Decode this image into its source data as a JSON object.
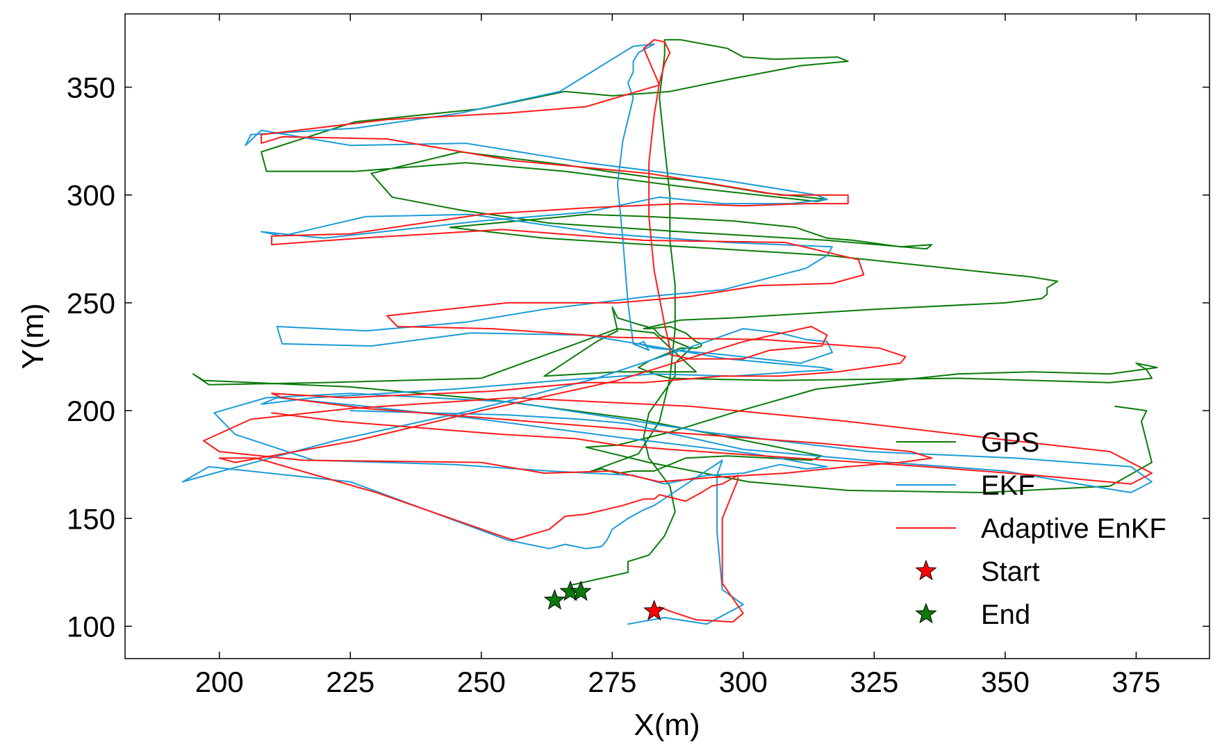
{
  "chart_data": {
    "type": "line",
    "title": "",
    "xlabel": "X(m)",
    "ylabel": "Y(m)",
    "xlim": [
      182,
      389
    ],
    "ylim": [
      85,
      384
    ],
    "xticks": [
      200,
      225,
      250,
      275,
      300,
      325,
      350,
      375
    ],
    "yticks": [
      100,
      150,
      200,
      250,
      300,
      350
    ],
    "grid": false,
    "legend_position": "lower-right",
    "legend": [
      "GPS",
      "EKF",
      "Adaptive EnKF",
      "Start",
      "End"
    ],
    "colors": {
      "GPS": "#0a7a0a",
      "EKF": "#1a9bd7",
      "Adaptive EnKF": "#ff1a1a",
      "Start": "#ff0000",
      "End": "#0a7a0a"
    },
    "series": [
      {
        "name": "GPS",
        "x": [
          267,
          278,
          278,
          282,
          285,
          287,
          286,
          282,
          281,
          282,
          287,
          287,
          290,
          284,
          283,
          280,
          276,
          275,
          276,
          272,
          262,
          276,
          291,
          283,
          276,
          250,
          220,
          198,
          195,
          197,
          225,
          252,
          280,
          315,
          313,
          297,
          289,
          283,
          279,
          276,
          273,
          271,
          270,
          280,
          284,
          286,
          287,
          287,
          286,
          286,
          285,
          284,
          285,
          285,
          288,
          297,
          300,
          306,
          318,
          320,
          311,
          298,
          286,
          275,
          266,
          250,
          226,
          208,
          209,
          226,
          247,
          266,
          288,
          314,
          316,
          304,
          289,
          283,
          274,
          266,
          246,
          229,
          233,
          246,
          263,
          288,
          316,
          335,
          336,
          330,
          321,
          316,
          310,
          298,
          282,
          270,
          266,
          244,
          262,
          282,
          316,
          347,
          355,
          360,
          358,
          358,
          357,
          350,
          325,
          298,
          288,
          281,
          282,
          286,
          289,
          291,
          292,
          292,
          291,
          288,
          282,
          280,
          283,
          286,
          306,
          341,
          370,
          378,
          377,
          375,
          379,
          370,
          355,
          341,
          314,
          298,
          286,
          276,
          270,
          282,
          301,
          320,
          346,
          370,
          378,
          376,
          377,
          371
        ],
        "y": [
          119,
          125,
          130,
          133,
          142,
          153,
          165,
          178,
          188,
          199,
          216,
          222,
          229,
          235,
          238,
          240,
          243,
          248,
          237,
          232,
          216,
          218,
          218,
          236,
          238,
          215,
          213,
          212,
          217,
          214,
          211,
          205,
          196,
          179,
          177,
          179,
          178,
          172,
          172,
          171,
          173,
          172,
          171,
          180,
          195,
          215,
          238,
          258,
          279,
          300,
          322,
          345,
          365,
          372,
          372,
          368,
          364,
          363,
          364,
          362,
          360,
          354,
          348,
          346,
          348,
          340,
          334,
          320,
          311,
          311,
          315,
          311,
          304,
          297,
          298,
          301,
          307,
          308,
          311,
          314,
          320,
          310,
          299,
          293,
          287,
          283,
          279,
          275,
          277,
          276,
          279,
          280,
          285,
          288,
          290,
          291,
          290,
          285,
          280,
          277,
          272,
          264,
          262,
          260,
          257,
          254,
          252,
          250,
          247,
          243,
          242,
          238,
          238,
          239,
          236,
          232,
          231,
          230,
          229,
          229,
          223,
          220,
          217,
          215,
          214,
          215,
          213,
          215,
          219,
          222,
          220,
          217,
          218,
          217,
          210,
          199,
          190,
          184,
          183,
          176,
          167,
          163,
          162,
          165,
          176,
          195,
          200,
          202
        ]
      },
      {
        "name": "EKF",
        "x": [
          278,
          285,
          293,
          300,
          296,
          295,
          295,
          296,
          283,
          281,
          278,
          275,
          274,
          273,
          270,
          266,
          263,
          255,
          225,
          198,
          193,
          199,
          222,
          248,
          272,
          293,
          300,
          307,
          312,
          316,
          317,
          311,
          296,
          283,
          280,
          281,
          282,
          279,
          278,
          277,
          276,
          277,
          279,
          278,
          279,
          279,
          280,
          283,
          279,
          265,
          246,
          226,
          206,
          205,
          208,
          225,
          247,
          270,
          296,
          314,
          316,
          309,
          296,
          284,
          270,
          250,
          220,
          208,
          212,
          228,
          248,
          274,
          297,
          317,
          316,
          312,
          296,
          282,
          262,
          247,
          228,
          211,
          212,
          229,
          248,
          270,
          297,
          315,
          317,
          310,
          298,
          283,
          265,
          245,
          218,
          208,
          211,
          228,
          250,
          275,
          302,
          316,
          312,
          307,
          300,
          293,
          285,
          279,
          263,
          245,
          218,
          203,
          199,
          209,
          225,
          256,
          293,
          324,
          352,
          374,
          378,
          374,
          364,
          350,
          328,
          300,
          285,
          278,
          269,
          255,
          225
        ],
        "y": [
          101,
          104,
          101,
          110,
          117,
          144,
          170,
          177,
          156,
          154,
          150,
          145,
          140,
          137,
          136,
          138,
          136,
          140,
          167,
          174,
          167,
          171,
          186,
          200,
          215,
          232,
          238,
          236,
          233,
          232,
          227,
          222,
          226,
          229,
          231,
          232,
          228,
          231,
          250,
          280,
          305,
          325,
          345,
          352,
          357,
          362,
          366,
          370,
          369,
          348,
          338,
          331,
          328,
          323,
          330,
          323,
          324,
          315,
          307,
          300,
          298,
          296,
          296,
          299,
          292,
          288,
          280,
          283,
          281,
          290,
          291,
          282,
          278,
          276,
          272,
          266,
          256,
          253,
          247,
          241,
          237,
          239,
          231,
          230,
          236,
          235,
          224,
          220,
          219,
          218,
          216,
          217,
          214,
          210,
          206,
          203,
          206,
          202,
          196,
          188,
          180,
          174,
          173,
          175,
          171,
          170,
          166,
          170,
          172,
          175,
          177,
          189,
          199,
          206,
          208,
          204,
          190,
          181,
          178,
          174,
          167,
          162,
          166,
          172,
          176,
          182,
          190,
          194,
          196,
          198,
          200
        ]
      },
      {
        "name": "Adaptive EnKF",
        "x": [
          282,
          284,
          286,
          291,
          298,
          300,
          296,
          296,
          299,
          299,
          296,
          294,
          292,
          289,
          284,
          283,
          281,
          277,
          270,
          266,
          263,
          256,
          230,
          207,
          200,
          203,
          226,
          250,
          276,
          300,
          313,
          316,
          315,
          305,
          300,
          290,
          286,
          286,
          285,
          283,
          282,
          282,
          283,
          284,
          285,
          286,
          285,
          283,
          281,
          284,
          270,
          255,
          232,
          208,
          208,
          212,
          232,
          256,
          282,
          307,
          320,
          320,
          312,
          300,
          288,
          270,
          250,
          225,
          210,
          210,
          227,
          254,
          281,
          308,
          322,
          323,
          317,
          303,
          290,
          276,
          255,
          232,
          234,
          252,
          276,
          304,
          326,
          331,
          330,
          318,
          307,
          296,
          281,
          270,
          252,
          224,
          210,
          212,
          228,
          254,
          280,
          314,
          332,
          336,
          330,
          320,
          308,
          294,
          284,
          275,
          262,
          250,
          216,
          200,
          197,
          206,
          225,
          256,
          290,
          320,
          348,
          370,
          378,
          374,
          356,
          335,
          310,
          286,
          276,
          268,
          254,
          223,
          210
        ],
        "y": [
          104,
          109,
          107,
          103,
          102,
          106,
          120,
          150,
          168,
          170,
          166,
          165,
          162,
          158,
          161,
          159,
          159,
          156,
          152,
          151,
          145,
          140,
          162,
          178,
          178,
          176,
          186,
          200,
          214,
          232,
          239,
          235,
          230,
          228,
          224,
          224,
          226,
          229,
          240,
          265,
          290,
          315,
          337,
          352,
          361,
          366,
          371,
          372,
          368,
          351,
          341,
          338,
          335,
          328,
          324,
          327,
          326,
          316,
          310,
          300,
          300,
          296,
          296,
          295,
          296,
          294,
          291,
          282,
          281,
          277,
          280,
          284,
          279,
          278,
          270,
          263,
          259,
          258,
          253,
          250,
          250,
          244,
          239,
          238,
          234,
          233,
          229,
          225,
          222,
          218,
          216,
          216,
          213,
          213,
          209,
          206,
          208,
          206,
          201,
          196,
          191,
          185,
          181,
          178,
          176,
          174,
          171,
          169,
          167,
          172,
          171,
          176,
          177,
          181,
          186,
          196,
          201,
          206,
          202,
          195,
          187,
          181,
          171,
          166,
          170,
          174,
          178,
          182,
          184,
          187,
          189,
          195,
          199
        ]
      }
    ],
    "markers": [
      {
        "name": "Start",
        "points": [
          [
            283,
            107
          ]
        ]
      },
      {
        "name": "End",
        "points": [
          [
            264,
            112
          ],
          [
            267,
            116
          ],
          [
            269,
            116
          ]
        ]
      }
    ]
  }
}
